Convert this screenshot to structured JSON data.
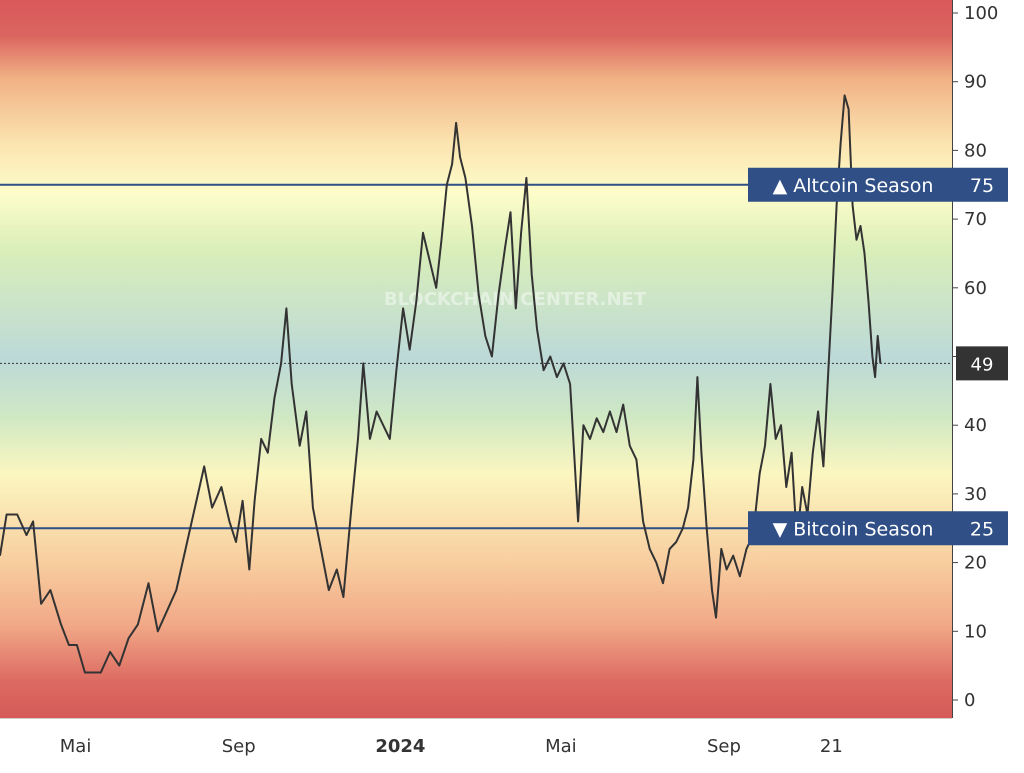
{
  "chart_data": {
    "type": "line",
    "watermark": "BLOCKCHAIN CENTER.NET",
    "y_ticks": [
      "100",
      "90",
      "80",
      "70",
      "60",
      "50",
      "40",
      "30",
      "20",
      "10",
      "0"
    ],
    "ylim": [
      0,
      100
    ],
    "x_ticks": [
      {
        "label": "Mai",
        "bold": false,
        "date": "2023-05-01"
      },
      {
        "label": "Sep",
        "bold": false,
        "date": "2023-09-01"
      },
      {
        "label": "2024",
        "bold": true,
        "date": "2024-01-01"
      },
      {
        "label": "Mai",
        "bold": false,
        "date": "2024-05-01"
      },
      {
        "label": "Sep",
        "bold": false,
        "date": "2024-09-01"
      },
      {
        "label": "21",
        "bold": false,
        "date": "2024-11-21"
      }
    ],
    "xlim": [
      "2023-03-05",
      "2025-02-20"
    ],
    "reference_lines": [
      {
        "label": "▲ Altcoin Season",
        "value": "75",
        "y": 75,
        "color": "#2f4f86"
      },
      {
        "label": "▼ Bitcoin Season",
        "value": "25",
        "y": 25,
        "color": "#2f4f86"
      }
    ],
    "current": {
      "value": "49",
      "y": 49
    },
    "series": [
      {
        "color": "#333333",
        "points": [
          [
            "2023-03-05",
            21
          ],
          [
            "2023-03-10",
            27
          ],
          [
            "2023-03-18",
            27
          ],
          [
            "2023-03-25",
            24
          ],
          [
            "2023-03-30",
            26
          ],
          [
            "2023-04-05",
            14
          ],
          [
            "2023-04-12",
            16
          ],
          [
            "2023-04-20",
            11
          ],
          [
            "2023-04-26",
            8
          ],
          [
            "2023-05-02",
            8
          ],
          [
            "2023-05-08",
            4
          ],
          [
            "2023-05-20",
            4
          ],
          [
            "2023-05-27",
            7
          ],
          [
            "2023-06-03",
            5
          ],
          [
            "2023-06-10",
            9
          ],
          [
            "2023-06-17",
            11
          ],
          [
            "2023-06-25",
            17
          ],
          [
            "2023-07-02",
            10
          ],
          [
            "2023-07-09",
            13
          ],
          [
            "2023-07-16",
            16
          ],
          [
            "2023-07-23",
            22
          ],
          [
            "2023-07-30",
            28
          ],
          [
            "2023-08-06",
            34
          ],
          [
            "2023-08-12",
            28
          ],
          [
            "2023-08-19",
            31
          ],
          [
            "2023-08-25",
            26
          ],
          [
            "2023-08-30",
            23
          ],
          [
            "2023-09-04",
            29
          ],
          [
            "2023-09-09",
            19
          ],
          [
            "2023-09-13",
            29
          ],
          [
            "2023-09-18",
            38
          ],
          [
            "2023-09-23",
            36
          ],
          [
            "2023-09-28",
            44
          ],
          [
            "2023-10-03",
            49
          ],
          [
            "2023-10-07",
            57
          ],
          [
            "2023-10-11",
            46
          ],
          [
            "2023-10-17",
            37
          ],
          [
            "2023-10-22",
            42
          ],
          [
            "2023-10-27",
            28
          ],
          [
            "2023-11-02",
            22
          ],
          [
            "2023-11-08",
            16
          ],
          [
            "2023-11-14",
            19
          ],
          [
            "2023-11-19",
            15
          ],
          [
            "2023-11-25",
            28
          ],
          [
            "2023-11-30",
            38
          ],
          [
            "2023-12-04",
            49
          ],
          [
            "2023-12-09",
            38
          ],
          [
            "2023-12-14",
            42
          ],
          [
            "2023-12-19",
            40
          ],
          [
            "2023-12-24",
            38
          ],
          [
            "2023-12-29",
            48
          ],
          [
            "2024-01-03",
            57
          ],
          [
            "2024-01-08",
            51
          ],
          [
            "2024-01-13",
            58
          ],
          [
            "2024-01-18",
            68
          ],
          [
            "2024-01-23",
            64
          ],
          [
            "2024-01-28",
            60
          ],
          [
            "2024-02-01",
            67
          ],
          [
            "2024-02-05",
            75
          ],
          [
            "2024-02-09",
            78
          ],
          [
            "2024-02-12",
            84
          ],
          [
            "2024-02-15",
            79
          ],
          [
            "2024-02-19",
            76
          ],
          [
            "2024-02-24",
            69
          ],
          [
            "2024-02-29",
            59
          ],
          [
            "2024-03-05",
            53
          ],
          [
            "2024-03-10",
            50
          ],
          [
            "2024-03-15",
            59
          ],
          [
            "2024-03-20",
            66
          ],
          [
            "2024-03-24",
            71
          ],
          [
            "2024-03-28",
            57
          ],
          [
            "2024-04-01",
            68
          ],
          [
            "2024-04-05",
            76
          ],
          [
            "2024-04-09",
            62
          ],
          [
            "2024-04-13",
            54
          ],
          [
            "2024-04-18",
            48
          ],
          [
            "2024-04-23",
            50
          ],
          [
            "2024-04-28",
            47
          ],
          [
            "2024-05-03",
            49
          ],
          [
            "2024-05-08",
            46
          ],
          [
            "2024-05-11",
            36
          ],
          [
            "2024-05-14",
            26
          ],
          [
            "2024-05-18",
            40
          ],
          [
            "2024-05-23",
            38
          ],
          [
            "2024-05-28",
            41
          ],
          [
            "2024-06-02",
            39
          ],
          [
            "2024-06-07",
            42
          ],
          [
            "2024-06-12",
            39
          ],
          [
            "2024-06-17",
            43
          ],
          [
            "2024-06-22",
            37
          ],
          [
            "2024-06-27",
            35
          ],
          [
            "2024-07-02",
            26
          ],
          [
            "2024-07-07",
            22
          ],
          [
            "2024-07-12",
            20
          ],
          [
            "2024-07-17",
            17
          ],
          [
            "2024-07-22",
            22
          ],
          [
            "2024-07-27",
            23
          ],
          [
            "2024-08-01",
            25
          ],
          [
            "2024-08-05",
            28
          ],
          [
            "2024-08-09",
            35
          ],
          [
            "2024-08-12",
            47
          ],
          [
            "2024-08-15",
            36
          ],
          [
            "2024-08-19",
            25
          ],
          [
            "2024-08-23",
            16
          ],
          [
            "2024-08-26",
            12
          ],
          [
            "2024-08-30",
            22
          ],
          [
            "2024-09-03",
            19
          ],
          [
            "2024-09-08",
            21
          ],
          [
            "2024-09-13",
            18
          ],
          [
            "2024-09-18",
            22
          ],
          [
            "2024-09-23",
            24
          ],
          [
            "2024-09-28",
            33
          ],
          [
            "2024-10-02",
            37
          ],
          [
            "2024-10-06",
            46
          ],
          [
            "2024-10-10",
            38
          ],
          [
            "2024-10-14",
            40
          ],
          [
            "2024-10-18",
            31
          ],
          [
            "2024-10-22",
            36
          ],
          [
            "2024-10-26",
            23
          ],
          [
            "2024-10-30",
            31
          ],
          [
            "2024-11-03",
            27
          ],
          [
            "2024-11-07",
            36
          ],
          [
            "2024-11-11",
            42
          ],
          [
            "2024-11-15",
            34
          ],
          [
            "2024-11-19",
            49
          ],
          [
            "2024-11-22",
            60
          ],
          [
            "2024-11-25",
            72
          ],
          [
            "2024-11-28",
            81
          ],
          [
            "2024-12-01",
            88
          ],
          [
            "2024-12-04",
            86
          ],
          [
            "2024-12-07",
            72
          ],
          [
            "2024-12-10",
            67
          ],
          [
            "2024-12-13",
            69
          ],
          [
            "2024-12-16",
            65
          ],
          [
            "2024-12-19",
            58
          ],
          [
            "2024-12-22",
            50
          ],
          [
            "2024-12-24",
            47
          ],
          [
            "2024-12-26",
            53
          ],
          [
            "2024-12-28",
            49
          ]
        ]
      }
    ]
  }
}
